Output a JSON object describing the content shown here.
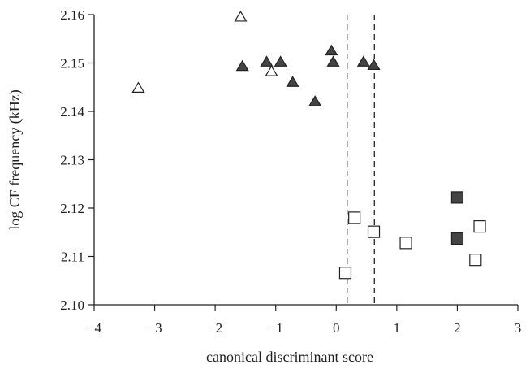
{
  "chart_data": {
    "type": "scatter",
    "title": "",
    "xlabel": "canonical discriminant score",
    "ylabel": "log CF frequency (kHz)",
    "xlim": [
      -4,
      3
    ],
    "ylim": [
      2.1,
      2.16
    ],
    "xticks": [
      -4,
      -3,
      -2,
      -1,
      0,
      1,
      2,
      3
    ],
    "yticks": [
      2.1,
      2.11,
      2.12,
      2.13,
      2.14,
      2.15,
      2.16
    ],
    "xtick_labels": [
      "−4",
      "−3",
      "−2",
      "−1",
      "0",
      "1",
      "2",
      "3"
    ],
    "ytick_labels": [
      "2.10",
      "2.11",
      "2.12",
      "2.13",
      "2.14",
      "2.15",
      "2.16"
    ],
    "grid": false,
    "reference_lines": [
      {
        "orientation": "vertical",
        "x": 0.18,
        "style": "dashed"
      },
      {
        "orientation": "vertical",
        "x": 0.63,
        "style": "dashed"
      }
    ],
    "series": [
      {
        "marker": "triangle",
        "filled": true,
        "points": [
          {
            "x": -1.55,
            "y": 2.1493
          },
          {
            "x": -1.15,
            "y": 2.1502
          },
          {
            "x": -0.92,
            "y": 2.1502
          },
          {
            "x": -0.72,
            "y": 2.146
          },
          {
            "x": -0.35,
            "y": 2.142
          },
          {
            "x": -0.08,
            "y": 2.1525
          },
          {
            "x": -0.05,
            "y": 2.1502
          },
          {
            "x": 0.45,
            "y": 2.1502
          },
          {
            "x": 0.62,
            "y": 2.1495
          }
        ]
      },
      {
        "marker": "triangle",
        "filled": false,
        "points": [
          {
            "x": -3.27,
            "y": 2.1448
          },
          {
            "x": -1.58,
            "y": 2.1595
          },
          {
            "x": -1.07,
            "y": 2.1482
          }
        ]
      },
      {
        "marker": "square",
        "filled": true,
        "points": [
          {
            "x": 2.0,
            "y": 2.1222
          },
          {
            "x": 2.0,
            "y": 2.1137
          }
        ]
      },
      {
        "marker": "square",
        "filled": false,
        "points": [
          {
            "x": 0.15,
            "y": 2.1066
          },
          {
            "x": 0.3,
            "y": 2.118
          },
          {
            "x": 0.62,
            "y": 2.1151
          },
          {
            "x": 1.15,
            "y": 2.1128
          },
          {
            "x": 2.3,
            "y": 2.1093
          },
          {
            "x": 2.37,
            "y": 2.1162
          }
        ]
      }
    ]
  }
}
